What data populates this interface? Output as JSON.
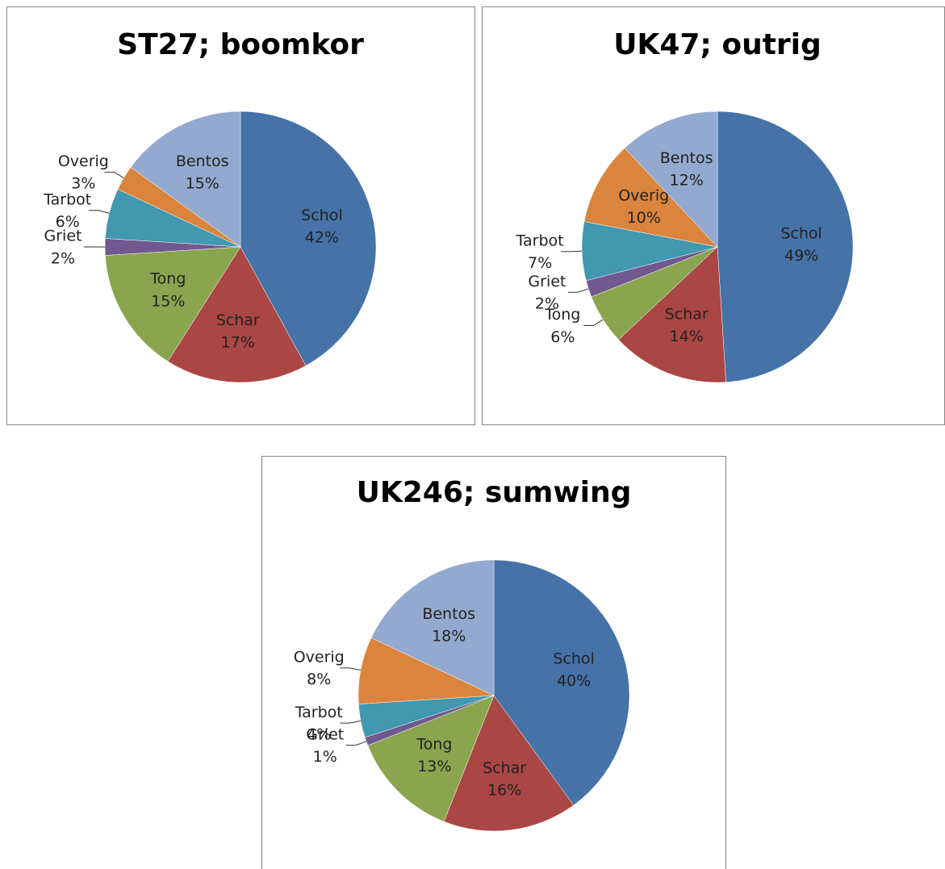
{
  "chart_data": [
    {
      "type": "pie",
      "title": "ST27; boomkor",
      "categories": [
        "Schol",
        "Schar",
        "Tong",
        "Griet",
        "Tarbot",
        "Overig",
        "Bentos"
      ],
      "values": [
        42,
        17,
        15,
        2,
        6,
        3,
        15
      ],
      "value_labels": [
        "42%",
        "17%",
        "15%",
        "2%",
        "6%",
        "3%",
        "15%"
      ],
      "colors": [
        "#4572a7",
        "#aa4643",
        "#89a54e",
        "#71588f",
        "#4198af",
        "#db843d",
        "#93a9cf"
      ]
    },
    {
      "type": "pie",
      "title": "UK47; outrig",
      "categories": [
        "Schol",
        "Schar",
        "Tong",
        "Griet",
        "Tarbot",
        "Overig",
        "Bentos"
      ],
      "values": [
        49,
        14,
        6,
        2,
        7,
        10,
        12
      ],
      "value_labels": [
        "49%",
        "14%",
        "6%",
        "2%",
        "7%",
        "10%",
        "12%"
      ],
      "colors": [
        "#4572a7",
        "#aa4643",
        "#89a54e",
        "#71588f",
        "#4198af",
        "#db843d",
        "#93a9cf"
      ]
    },
    {
      "type": "pie",
      "title": "UK246; sumwing",
      "categories": [
        "Schol",
        "Schar",
        "Tong",
        "Griet",
        "Tarbot",
        "Overig",
        "Bentos"
      ],
      "values": [
        40,
        16,
        13,
        1,
        4,
        8,
        18
      ],
      "value_labels": [
        "40%",
        "16%",
        "13%",
        "1%",
        "4%",
        "8%",
        "18%"
      ],
      "colors": [
        "#4572a7",
        "#aa4643",
        "#89a54e",
        "#71588f",
        "#4198af",
        "#db843d",
        "#93a9cf"
      ]
    }
  ]
}
